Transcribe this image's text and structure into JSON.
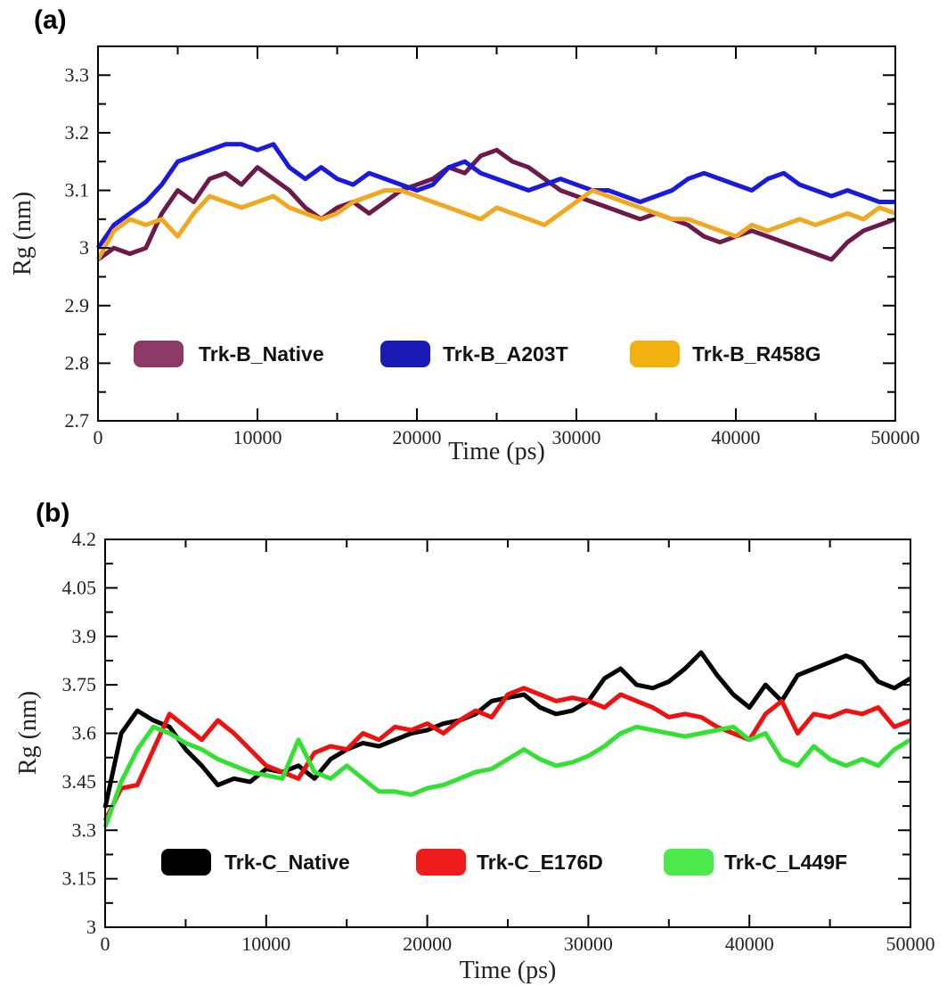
{
  "chart_data": [
    {
      "panel": "(a)",
      "type": "line",
      "xlabel": "Time (ps)",
      "ylabel": "Rg (nm)",
      "xlim": [
        0,
        50000
      ],
      "ylim": [
        2.7,
        3.35
      ],
      "x_ticks": [
        0,
        10000,
        20000,
        30000,
        40000,
        50000
      ],
      "y_ticks": [
        2.7,
        2.8,
        2.9,
        3,
        3.1,
        3.2,
        3.3
      ],
      "legend_position": "lower-center",
      "series": [
        {
          "name": "Trk-B_Native",
          "color": "#6b1a4a",
          "legend_color": "#8b3a68",
          "x": [
            0,
            1000,
            2000,
            3000,
            4000,
            5000,
            6000,
            7000,
            8000,
            9000,
            10000,
            11000,
            12000,
            13000,
            14000,
            15000,
            16000,
            17000,
            18000,
            19000,
            20000,
            21000,
            22000,
            23000,
            24000,
            25000,
            26000,
            27000,
            28000,
            29000,
            30000,
            31000,
            32000,
            33000,
            34000,
            35000,
            36000,
            37000,
            38000,
            39000,
            40000,
            41000,
            42000,
            43000,
            44000,
            45000,
            46000,
            47000,
            48000,
            49000,
            50000
          ],
          "values": [
            2.98,
            3.0,
            2.99,
            3.0,
            3.06,
            3.1,
            3.08,
            3.12,
            3.13,
            3.11,
            3.14,
            3.12,
            3.1,
            3.07,
            3.05,
            3.07,
            3.08,
            3.06,
            3.08,
            3.1,
            3.11,
            3.12,
            3.14,
            3.13,
            3.16,
            3.17,
            3.15,
            3.14,
            3.12,
            3.1,
            3.09,
            3.08,
            3.07,
            3.06,
            3.05,
            3.06,
            3.05,
            3.04,
            3.02,
            3.01,
            3.02,
            3.03,
            3.02,
            3.01,
            3.0,
            2.99,
            2.98,
            3.01,
            3.03,
            3.04,
            3.05
          ]
        },
        {
          "name": "Trk-B_A203T",
          "color": "#1a1adc",
          "legend_color": "#1a1ab4",
          "x": [
            0,
            1000,
            2000,
            3000,
            4000,
            5000,
            6000,
            7000,
            8000,
            9000,
            10000,
            11000,
            12000,
            13000,
            14000,
            15000,
            16000,
            17000,
            18000,
            19000,
            20000,
            21000,
            22000,
            23000,
            24000,
            25000,
            26000,
            27000,
            28000,
            29000,
            30000,
            31000,
            32000,
            33000,
            34000,
            35000,
            36000,
            37000,
            38000,
            39000,
            40000,
            41000,
            42000,
            43000,
            44000,
            45000,
            46000,
            47000,
            48000,
            49000,
            50000
          ],
          "values": [
            3.0,
            3.04,
            3.06,
            3.08,
            3.11,
            3.15,
            3.16,
            3.17,
            3.18,
            3.18,
            3.17,
            3.18,
            3.14,
            3.12,
            3.14,
            3.12,
            3.11,
            3.13,
            3.12,
            3.11,
            3.1,
            3.11,
            3.14,
            3.15,
            3.13,
            3.12,
            3.11,
            3.1,
            3.11,
            3.12,
            3.11,
            3.1,
            3.1,
            3.09,
            3.08,
            3.09,
            3.1,
            3.12,
            3.13,
            3.12,
            3.11,
            3.1,
            3.12,
            3.13,
            3.11,
            3.1,
            3.09,
            3.1,
            3.09,
            3.08,
            3.08
          ]
        },
        {
          "name": "Trk-B_R458G",
          "color": "#f0a820",
          "legend_color": "#f0b010",
          "x": [
            0,
            1000,
            2000,
            3000,
            4000,
            5000,
            6000,
            7000,
            8000,
            9000,
            10000,
            11000,
            12000,
            13000,
            14000,
            15000,
            16000,
            17000,
            18000,
            19000,
            20000,
            21000,
            22000,
            23000,
            24000,
            25000,
            26000,
            27000,
            28000,
            29000,
            30000,
            31000,
            32000,
            33000,
            34000,
            35000,
            36000,
            37000,
            38000,
            39000,
            40000,
            41000,
            42000,
            43000,
            44000,
            45000,
            46000,
            47000,
            48000,
            49000,
            50000
          ],
          "values": [
            2.98,
            3.03,
            3.05,
            3.04,
            3.05,
            3.02,
            3.06,
            3.09,
            3.08,
            3.07,
            3.08,
            3.09,
            3.07,
            3.06,
            3.05,
            3.06,
            3.08,
            3.09,
            3.1,
            3.1,
            3.09,
            3.08,
            3.07,
            3.06,
            3.05,
            3.07,
            3.06,
            3.05,
            3.04,
            3.06,
            3.08,
            3.1,
            3.09,
            3.08,
            3.07,
            3.06,
            3.05,
            3.05,
            3.04,
            3.03,
            3.02,
            3.04,
            3.03,
            3.04,
            3.05,
            3.04,
            3.05,
            3.06,
            3.05,
            3.07,
            3.06
          ]
        }
      ]
    },
    {
      "panel": "(b)",
      "type": "line",
      "xlabel": "Time (ps)",
      "ylabel": "Rg (nm)",
      "xlim": [
        0,
        50000
      ],
      "ylim": [
        3.0,
        4.2
      ],
      "x_ticks": [
        0,
        10000,
        20000,
        30000,
        40000,
        50000
      ],
      "y_ticks": [
        3,
        3.15,
        3.3,
        3.45,
        3.6,
        3.75,
        3.9,
        4.05,
        4.2
      ],
      "legend_position": "lower-center",
      "series": [
        {
          "name": "Trk-C_Native",
          "color": "#000000",
          "legend_color": "#000000",
          "x": [
            0,
            1000,
            2000,
            3000,
            4000,
            5000,
            6000,
            7000,
            8000,
            9000,
            10000,
            11000,
            12000,
            13000,
            14000,
            15000,
            16000,
            17000,
            18000,
            19000,
            20000,
            21000,
            22000,
            23000,
            24000,
            25000,
            26000,
            27000,
            28000,
            29000,
            30000,
            31000,
            32000,
            33000,
            34000,
            35000,
            36000,
            37000,
            38000,
            39000,
            40000,
            41000,
            42000,
            43000,
            44000,
            45000,
            46000,
            47000,
            48000,
            49000,
            50000
          ],
          "values": [
            3.37,
            3.6,
            3.67,
            3.64,
            3.62,
            3.55,
            3.5,
            3.44,
            3.46,
            3.45,
            3.49,
            3.48,
            3.5,
            3.46,
            3.52,
            3.55,
            3.57,
            3.56,
            3.58,
            3.6,
            3.61,
            3.63,
            3.64,
            3.66,
            3.7,
            3.71,
            3.72,
            3.68,
            3.66,
            3.67,
            3.7,
            3.77,
            3.8,
            3.75,
            3.74,
            3.76,
            3.8,
            3.85,
            3.78,
            3.72,
            3.68,
            3.75,
            3.7,
            3.78,
            3.8,
            3.82,
            3.84,
            3.82,
            3.76,
            3.74,
            3.77
          ]
        },
        {
          "name": "Trk-C_E176D",
          "color": "#f01010",
          "legend_color": "#ee1c1c",
          "x": [
            0,
            1000,
            2000,
            3000,
            4000,
            5000,
            6000,
            7000,
            8000,
            9000,
            10000,
            11000,
            12000,
            13000,
            14000,
            15000,
            16000,
            17000,
            18000,
            19000,
            20000,
            21000,
            22000,
            23000,
            24000,
            25000,
            26000,
            27000,
            28000,
            29000,
            30000,
            31000,
            32000,
            33000,
            34000,
            35000,
            36000,
            37000,
            38000,
            39000,
            40000,
            41000,
            42000,
            43000,
            44000,
            45000,
            46000,
            47000,
            48000,
            49000,
            50000
          ],
          "values": [
            3.33,
            3.43,
            3.44,
            3.55,
            3.66,
            3.62,
            3.58,
            3.64,
            3.6,
            3.55,
            3.5,
            3.48,
            3.46,
            3.54,
            3.56,
            3.55,
            3.6,
            3.58,
            3.62,
            3.61,
            3.63,
            3.6,
            3.64,
            3.67,
            3.65,
            3.72,
            3.74,
            3.72,
            3.7,
            3.71,
            3.7,
            3.68,
            3.72,
            3.7,
            3.68,
            3.65,
            3.66,
            3.65,
            3.62,
            3.6,
            3.58,
            3.66,
            3.7,
            3.6,
            3.66,
            3.65,
            3.67,
            3.66,
            3.68,
            3.62,
            3.64
          ]
        },
        {
          "name": "Trk-C_L449F",
          "color": "#33e033",
          "legend_color": "#4ce84c",
          "x": [
            0,
            1000,
            2000,
            3000,
            4000,
            5000,
            6000,
            7000,
            8000,
            9000,
            10000,
            11000,
            12000,
            13000,
            14000,
            15000,
            16000,
            17000,
            18000,
            19000,
            20000,
            21000,
            22000,
            23000,
            24000,
            25000,
            26000,
            27000,
            28000,
            29000,
            30000,
            31000,
            32000,
            33000,
            34000,
            35000,
            36000,
            37000,
            38000,
            39000,
            40000,
            41000,
            42000,
            43000,
            44000,
            45000,
            46000,
            47000,
            48000,
            49000,
            50000
          ],
          "values": [
            3.31,
            3.45,
            3.55,
            3.62,
            3.6,
            3.57,
            3.55,
            3.52,
            3.5,
            3.48,
            3.47,
            3.46,
            3.58,
            3.48,
            3.46,
            3.5,
            3.46,
            3.42,
            3.42,
            3.41,
            3.43,
            3.44,
            3.46,
            3.48,
            3.49,
            3.52,
            3.55,
            3.52,
            3.5,
            3.51,
            3.53,
            3.56,
            3.6,
            3.62,
            3.61,
            3.6,
            3.59,
            3.6,
            3.61,
            3.62,
            3.58,
            3.6,
            3.52,
            3.5,
            3.56,
            3.52,
            3.5,
            3.52,
            3.5,
            3.55,
            3.58
          ]
        }
      ]
    }
  ]
}
